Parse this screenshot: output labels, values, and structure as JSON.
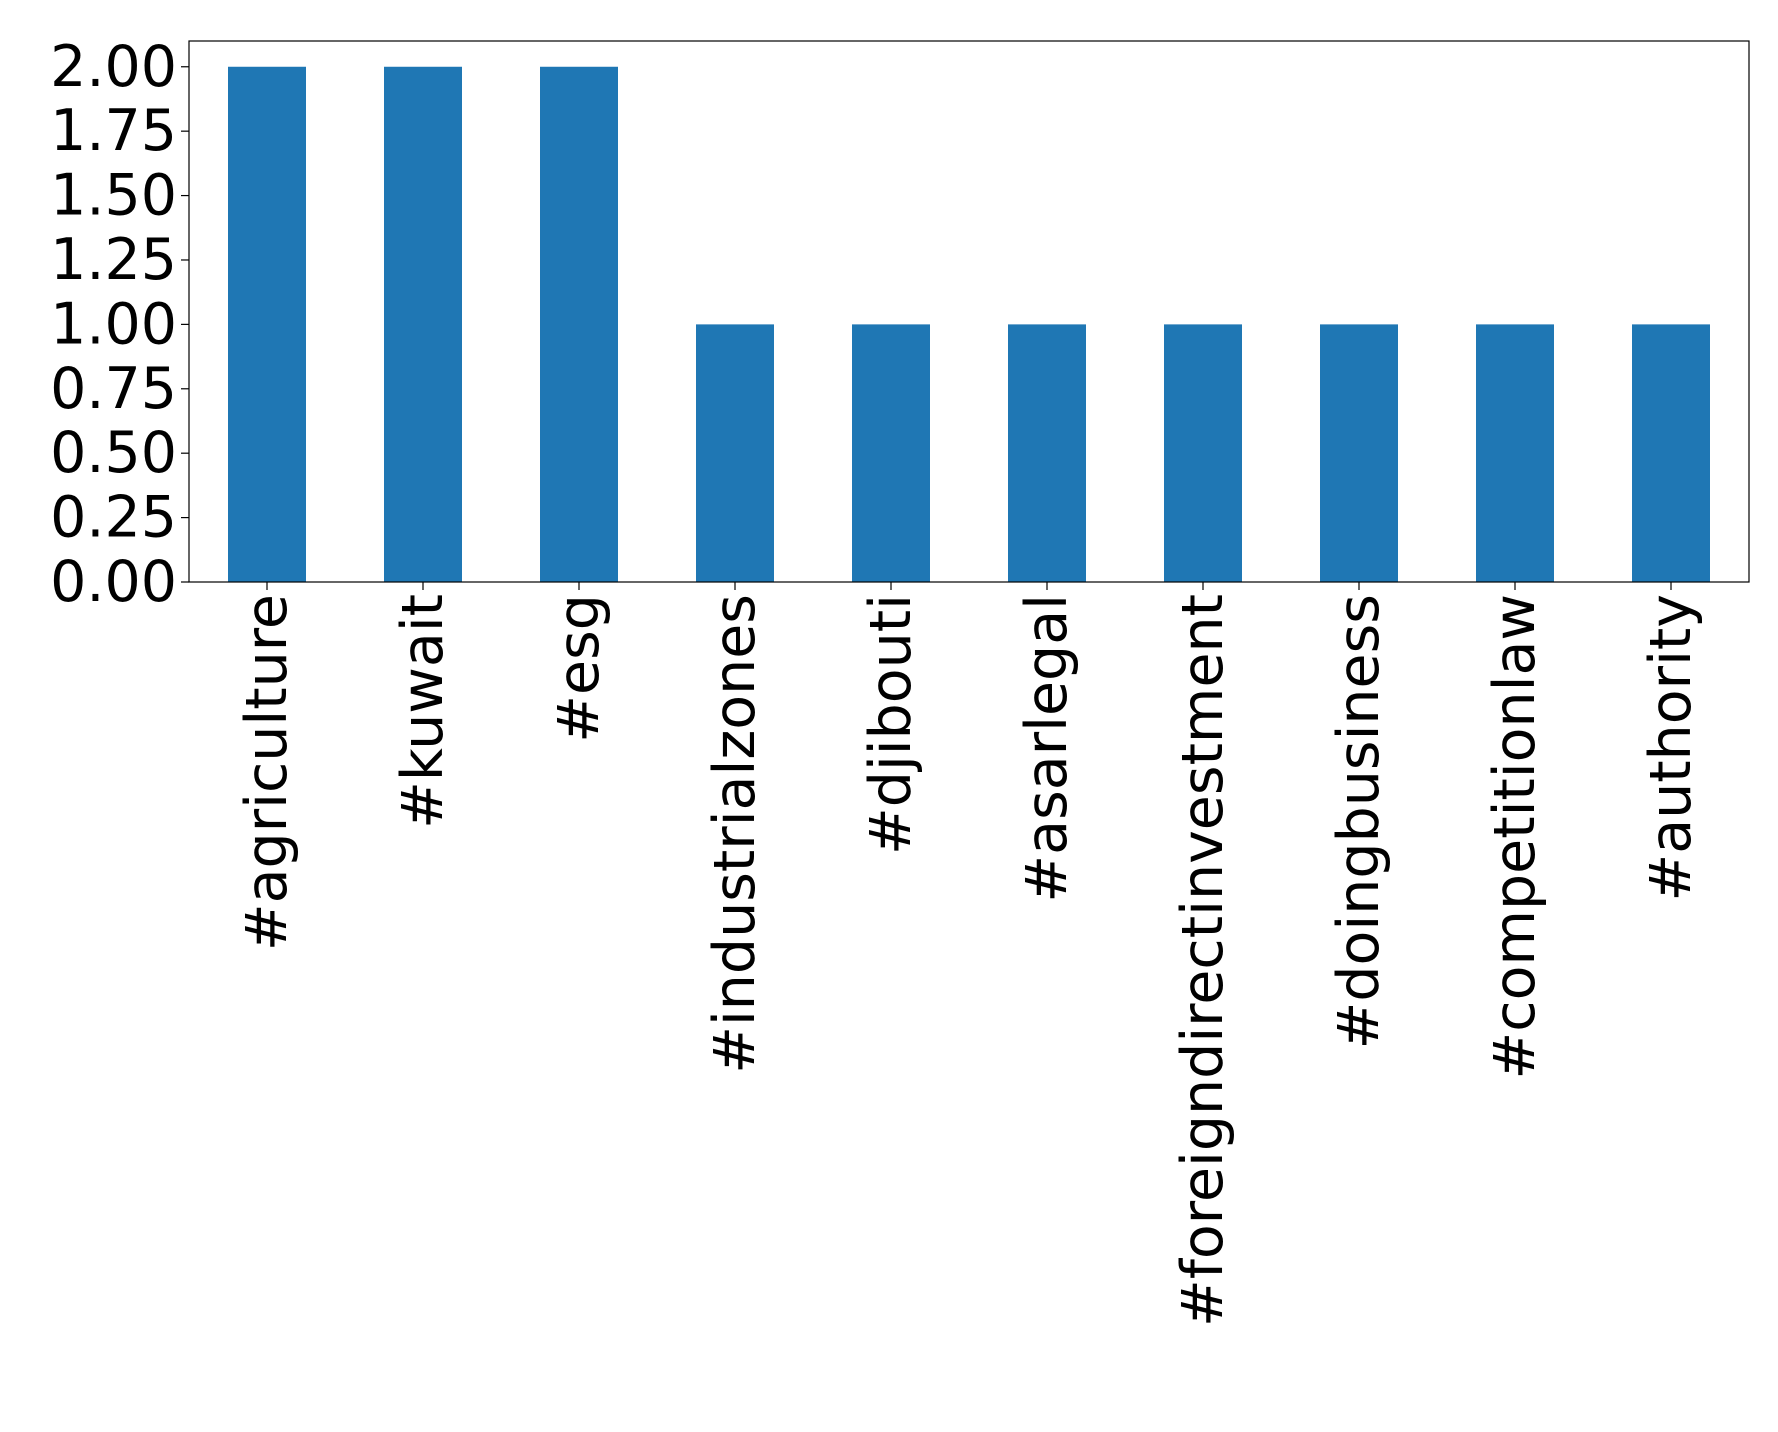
{
  "chart_data": {
    "type": "bar",
    "categories": [
      "#agriculture",
      "#kuwait",
      "#esg",
      "#industrialzones",
      "#djibouti",
      "#asarlegal",
      "#foreigndirectinvestment",
      "#doingbusiness",
      "#competitionlaw",
      "#authority"
    ],
    "values": [
      2,
      2,
      2,
      1,
      1,
      1,
      1,
      1,
      1,
      1
    ],
    "color": "#1f77b4",
    "ylim": [
      0,
      2.1
    ],
    "yticks": [
      {
        "value": 0,
        "label": "0.00"
      },
      {
        "value": 0.25,
        "label": "0.25"
      },
      {
        "value": 0.5,
        "label": "0.50"
      },
      {
        "value": 0.75,
        "label": "0.75"
      },
      {
        "value": 1,
        "label": "1.00"
      },
      {
        "value": 1.25,
        "label": "1.25"
      },
      {
        "value": 1.5,
        "label": "1.50"
      },
      {
        "value": 1.75,
        "label": "1.75"
      },
      {
        "value": 2,
        "label": "2.00"
      }
    ],
    "grid": false
  }
}
